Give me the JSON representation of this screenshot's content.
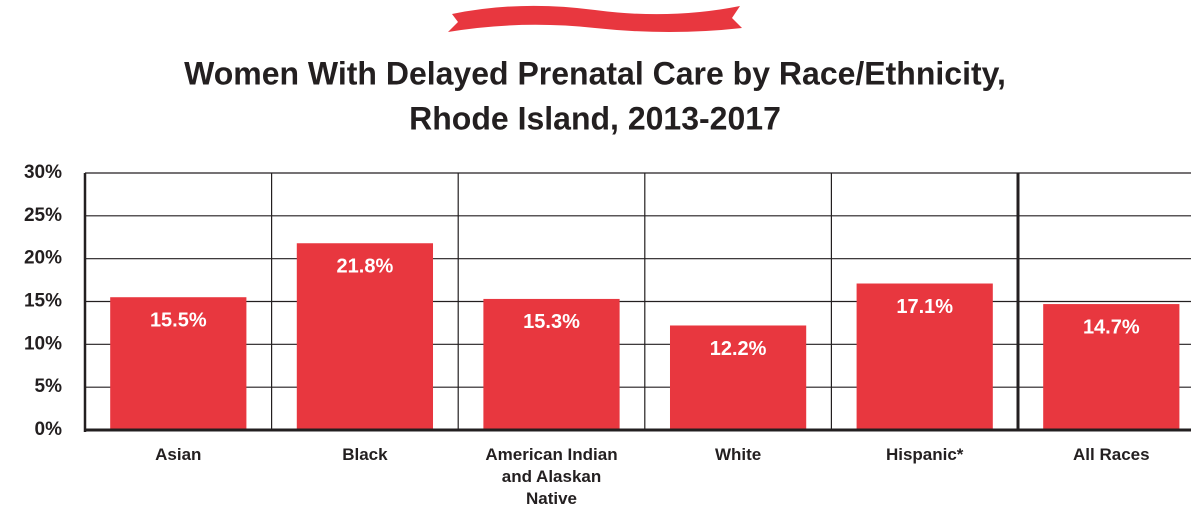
{
  "chart_data": {
    "type": "bar",
    "title": [
      "Women With Delayed Prenatal Care by Race/Ethnicity,",
      "Rhode Island, 2013-2017"
    ],
    "categories": [
      "Asian",
      "Black",
      "American Indian and Alaskan Native",
      "White",
      "Hispanic*",
      "All Races"
    ],
    "values": [
      15.5,
      21.8,
      15.3,
      12.2,
      17.1,
      14.7
    ],
    "value_labels": [
      "15.5%",
      "21.8%",
      "15.3%",
      "12.2%",
      "17.1%",
      "14.7%"
    ],
    "color": "#e8373f",
    "ylim": [
      0,
      30
    ],
    "yticks": [
      {
        "value": 0,
        "label": "0%"
      },
      {
        "value": 5,
        "label": "5%"
      },
      {
        "value": 10,
        "label": "10%"
      },
      {
        "value": 15,
        "label": "15%"
      },
      {
        "value": 20,
        "label": "20%"
      },
      {
        "value": 25,
        "label": "25%"
      },
      {
        "value": 30,
        "label": "30%"
      }
    ],
    "grid": true
  }
}
